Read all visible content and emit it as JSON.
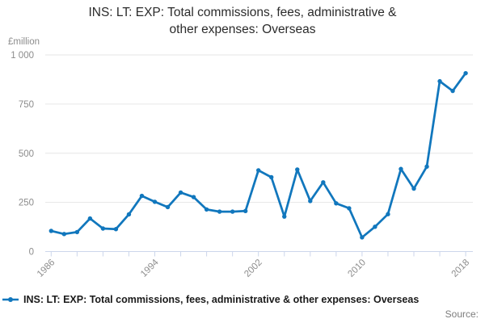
{
  "header": {
    "title_line1": "INS: LT: EXP: Total commissions, fees, administrative &",
    "title_line2": "other expenses: Overseas"
  },
  "y_axis": {
    "unit": "£million"
  },
  "legend": {
    "label": "INS: LT: EXP: Total commissions, fees, administrative & other expenses: Overseas"
  },
  "footer": {
    "source_label": "Source:"
  },
  "style": {
    "series_color": "#1177bd",
    "grid_color": "#e6e6e6",
    "axis_color": "#ccd6eb",
    "axis_label_color": "#8c8c8c",
    "title_color": "#2b2b2b",
    "legend_text_color": "#1a1a1a"
  },
  "chart_data": {
    "type": "line",
    "title": "INS: LT: EXP: Total commissions, fees, administrative & other expenses: Overseas",
    "xlabel": "",
    "ylabel": "£million",
    "x": [
      1986,
      1987,
      1988,
      1989,
      1990,
      1991,
      1992,
      1993,
      1994,
      1995,
      1996,
      1997,
      1998,
      1999,
      2000,
      2001,
      2002,
      2003,
      2004,
      2005,
      2006,
      2007,
      2008,
      2009,
      2010,
      2011,
      2012,
      2013,
      2014,
      2015,
      2016,
      2017,
      2018
    ],
    "values": [
      105,
      89,
      99,
      168,
      117,
      114,
      189,
      283,
      253,
      226,
      300,
      277,
      214,
      203,
      203,
      206,
      413,
      378,
      178,
      417,
      257,
      352,
      245,
      220,
      72,
      126,
      190,
      420,
      320,
      432,
      866,
      817,
      907
    ],
    "ylim": [
      0,
      1000
    ],
    "y_ticks": [
      0,
      250,
      500,
      750,
      1000
    ],
    "y_tick_labels": [
      "0",
      "250",
      "500",
      "750",
      "1 000"
    ],
    "x_tick_interval": 2,
    "x_label_ticks": [
      1986,
      1994,
      2002,
      2010,
      2018
    ],
    "grid": "horizontal",
    "legend_position": "bottom-left",
    "markers": true
  }
}
